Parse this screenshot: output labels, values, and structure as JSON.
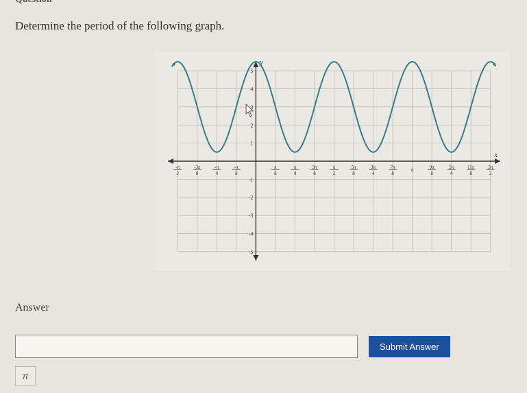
{
  "header_partial": "Question",
  "prompt": "Determine the period of the following graph.",
  "answer_label": "Answer",
  "answer_value": "",
  "answer_placeholder": "",
  "submit_label": "Submit Answer",
  "pi_label": "π",
  "graph": {
    "type": "line",
    "background_color": "rgba(255,255,255,0.15)",
    "grid_color": "#bdbab3",
    "axis_color": "#333333",
    "curve_color": "#3a7a8a",
    "curve_width": 2,
    "x_axis_label": "x",
    "y_axis_label": "y",
    "x_unit": "π/8",
    "x_tick_start": -4,
    "x_tick_end": 12,
    "x_tick_step": 1,
    "x_tick_labels": [
      "-π/2",
      "-3π/8",
      "-π/4",
      "-π/8",
      "",
      "π/8",
      "π/4",
      "3π/8",
      "π/2",
      "5π/8",
      "3π/4",
      "7π/8",
      "π",
      "9π/8",
      "5π/4",
      "11π/8",
      "3π/2"
    ],
    "y_tick_start": -5,
    "y_tick_end": 5,
    "y_tick_step": 1,
    "amplitude": 2.5,
    "vertical_shift": 3,
    "period_in_x_units": 4,
    "phase": "cosine",
    "ylim": [
      -5.5,
      5.5
    ],
    "label_fontsize": 8,
    "tick_fontsize": 7
  },
  "cursor": {
    "visible": true,
    "near": "y=3"
  }
}
